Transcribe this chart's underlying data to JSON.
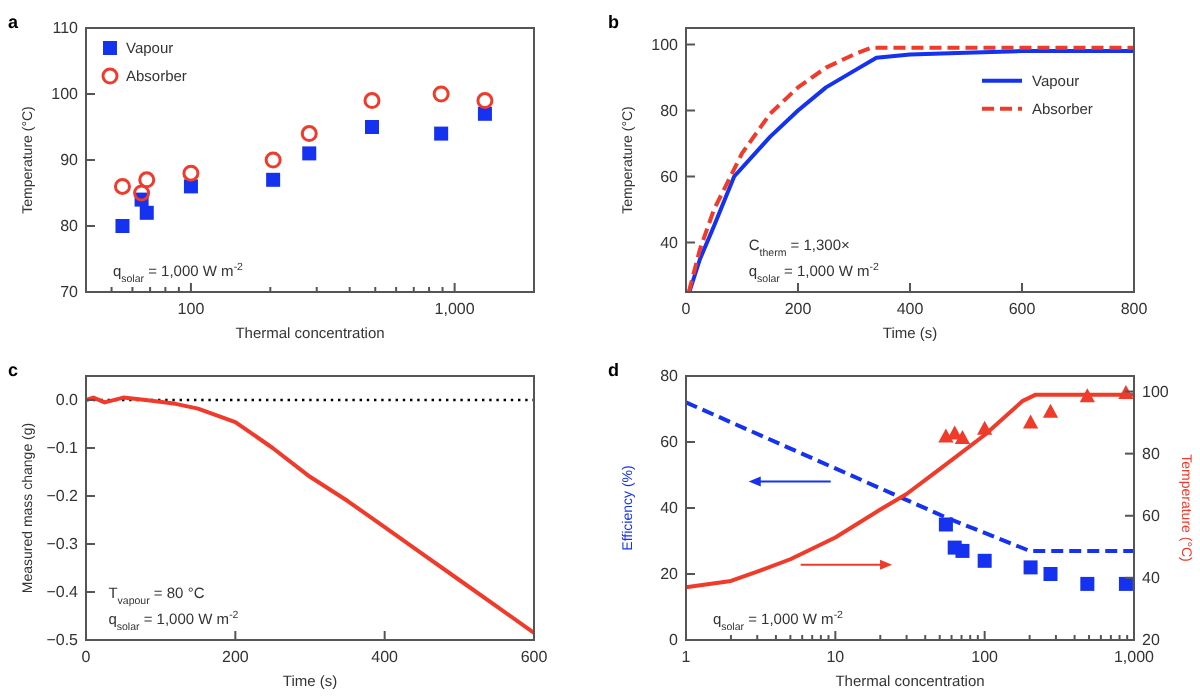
{
  "chart_data": [
    {
      "type": "scatter",
      "title": "a",
      "xlabel": "Thermal concentration",
      "ylabel": "Temperature (°C)",
      "log": "x",
      "legend": "top left",
      "annotations": [
        "q$_{solar}$ = 1,000 W m$^{-2}$"
      ],
      "x": [
        55,
        65,
        68,
        100,
        205,
        281,
        486,
        889,
        1303
      ],
      "xlim": [
        40,
        2000
      ],
      "xticks": [
        {
          "value": 50,
          "label": null
        },
        {
          "value": 60,
          "label": null
        },
        {
          "value": 70,
          "label": null
        },
        {
          "value": 80,
          "label": null
        },
        {
          "value": 90,
          "label": null
        },
        100,
        {
          "value": 200,
          "label": null
        },
        {
          "value": 300,
          "label": null
        },
        {
          "value": 400,
          "label": null
        },
        {
          "value": 500,
          "label": null
        },
        {
          "value": 600,
          "label": null
        },
        {
          "value": 700,
          "label": null
        },
        {
          "value": 800,
          "label": null
        },
        {
          "value": 900,
          "label": null
        },
        {
          "value": 1000,
          "label": "1,000"
        }
      ],
      "ylim": [
        70,
        110
      ],
      "yticks": [
        70,
        80,
        90,
        100,
        110
      ],
      "series": [
        {
          "name": "Vapour",
          "color": "#1432f0",
          "marker": "square",
          "values": [
            80,
            84,
            82,
            86,
            87,
            91,
            95,
            94,
            97
          ]
        },
        {
          "name": "Absorber",
          "color": "#f03a2a",
          "marker": "circle",
          "values": [
            86,
            85,
            87,
            88,
            90,
            94,
            99,
            100,
            99
          ]
        }
      ]
    },
    {
      "type": "line",
      "title": "b",
      "xlabel": "Time (s)",
      "ylabel": "Temperature (°C)",
      "legend": "top right",
      "annotations": [
        "C$_{therm}$ = 1,300×",
        "q$_{solar}$ = 1,000 W m$^{-2}$"
      ],
      "xlim": [
        0,
        800
      ],
      "xticks": [
        0,
        200,
        400,
        600,
        800
      ],
      "ylim": [
        25,
        105
      ],
      "yticks": [
        40,
        60,
        80,
        100
      ],
      "series": [
        {
          "name": "Vapour",
          "color": "#1432f0",
          "line_style": "solid",
          "x": [
            6,
            25,
            50,
            86,
            150,
            200,
            250,
            300,
            340,
            400,
            500,
            600,
            800
          ],
          "values": [
            25,
            35,
            45,
            60,
            72,
            80,
            87,
            92,
            96,
            97,
            97.5,
            98,
            98
          ]
        },
        {
          "name": "Absorber",
          "color": "#f03a2a",
          "line_style": "dashed",
          "x": [
            5,
            25,
            50,
            100,
            150,
            200,
            250,
            300,
            330,
            400,
            800
          ],
          "values": [
            25,
            38,
            50,
            67,
            79,
            87,
            93,
            97,
            99,
            99,
            99
          ]
        }
      ]
    },
    {
      "type": "line",
      "title": "c",
      "xlabel": "Time (s)",
      "ylabel": "Measured mass change (g)",
      "annotations": [
        "T$_{vapour}$ = 80 °C",
        "q$_{solar}$ = 1,000 W m$^{-2}$"
      ],
      "xlim": [
        0,
        600
      ],
      "xticks": [
        0,
        200,
        400,
        600
      ],
      "ylim": [
        -0.5,
        0.05
      ],
      "yticks": [
        {
          "value": 0,
          "label": "0.0"
        },
        {
          "value": -0.1,
          "label": "−0.1"
        },
        {
          "value": -0.2,
          "label": "−0.2"
        },
        {
          "value": -0.3,
          "label": "−0.3"
        },
        {
          "value": -0.4,
          "label": "−0.4"
        },
        {
          "value": -0.5,
          "label": "−0.5"
        }
      ],
      "ref_lines": [
        {
          "axis": "y",
          "value": 0,
          "color": "#000000",
          "line_style": "dotted"
        }
      ],
      "series": [
        {
          "color": "#f03a2a",
          "line_style": "solid",
          "x": [
            0,
            10,
            25,
            50,
            80,
            120,
            150,
            200,
            250,
            300,
            350,
            400,
            450,
            500,
            550,
            600
          ],
          "values": [
            0,
            0.005,
            -0.005,
            0.005,
            0,
            -0.008,
            -0.018,
            -0.046,
            -0.1,
            -0.16,
            -0.21,
            -0.265,
            -0.32,
            -0.375,
            -0.43,
            -0.485
          ]
        }
      ]
    },
    {
      "type": "line",
      "title": "d",
      "xlabel": "Thermal concentration",
      "ylabel": "Efficiency (%)",
      "y2label": "Temperature (°C)",
      "log": "x",
      "annotations": [
        "q$_{solar}$ = 1,000 W m$^{-2}$"
      ],
      "xlim": [
        1,
        1000
      ],
      "xticks": [
        1,
        {
          "value": 2,
          "label": null
        },
        {
          "value": 3,
          "label": null
        },
        {
          "value": 4,
          "label": null
        },
        {
          "value": 5,
          "label": null
        },
        {
          "value": 6,
          "label": null
        },
        {
          "value": 7,
          "label": null
        },
        {
          "value": 8,
          "label": null
        },
        {
          "value": 9,
          "label": null
        },
        10,
        {
          "value": 20,
          "label": null
        },
        {
          "value": 30,
          "label": null
        },
        {
          "value": 40,
          "label": null
        },
        {
          "value": 50,
          "label": null
        },
        {
          "value": 60,
          "label": null
        },
        {
          "value": 70,
          "label": null
        },
        {
          "value": 80,
          "label": null
        },
        {
          "value": 90,
          "label": null
        },
        100,
        {
          "value": 200,
          "label": null
        },
        {
          "value": 300,
          "label": null
        },
        {
          "value": 400,
          "label": null
        },
        {
          "value": 500,
          "label": null
        },
        {
          "value": 600,
          "label": null
        },
        {
          "value": 700,
          "label": null
        },
        {
          "value": 800,
          "label": null
        },
        {
          "value": 900,
          "label": null
        },
        {
          "value": 1000,
          "label": "1,000"
        }
      ],
      "ylim": [
        0,
        80
      ],
      "yticks": [
        0,
        20,
        40,
        60,
        80
      ],
      "y2lim": [
        20,
        105
      ],
      "y2ticks": [
        20,
        40,
        60,
        80,
        100
      ],
      "series": [
        {
          "color": "#1432f0",
          "line_style": "dashed",
          "x": [
            1,
            10,
            56,
            200,
            1000
          ],
          "values": [
            72,
            52,
            37,
            27,
            27
          ]
        },
        {
          "type": "scatter",
          "color": "#1432f0",
          "marker": "square",
          "x": [
            55,
            63,
            71,
            100,
            203,
            276,
            487,
            883
          ],
          "values": [
            35,
            28,
            27,
            24,
            22,
            20,
            17,
            17
          ]
        },
        {
          "color": "#f03a2a",
          "line_style": "solid",
          "axis": "y2",
          "x": [
            1,
            2,
            3,
            5,
            10,
            20,
            30,
            50,
            100,
            180,
            220,
            1000
          ],
          "values": [
            37,
            39,
            42,
            46,
            53,
            62,
            67,
            75,
            86,
            97,
            99,
            99
          ]
        },
        {
          "type": "scatter",
          "color": "#f03a2a",
          "marker": "triangle",
          "axis": "y2",
          "x": [
            55,
            63,
            71,
            100,
            203,
            276,
            487,
            883
          ],
          "values": [
            85.5,
            86.5,
            85,
            88,
            90,
            93.5,
            98.5,
            99.5
          ]
        }
      ]
    }
  ]
}
